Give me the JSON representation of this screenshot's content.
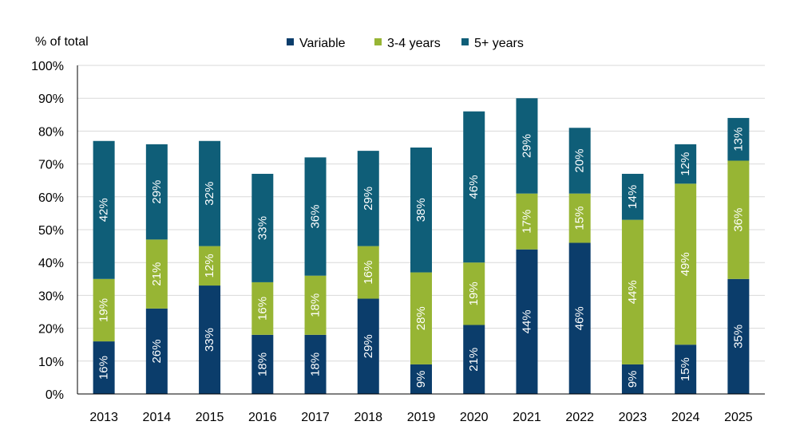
{
  "chart_data": {
    "type": "bar",
    "stacked": true,
    "ylabel": "% of total",
    "ylim": [
      0,
      100
    ],
    "yticks": [
      "0%",
      "10%",
      "20%",
      "30%",
      "40%",
      "50%",
      "60%",
      "70%",
      "80%",
      "90%",
      "100%"
    ],
    "grid": true,
    "legend_position": "top",
    "categories": [
      "2013",
      "2014",
      "2015",
      "2016",
      "2017",
      "2018",
      "2019",
      "2020",
      "2021",
      "2022",
      "2023",
      "2024",
      "2025"
    ],
    "series": [
      {
        "name": "Variable",
        "color": "#0b3d6b",
        "values": [
          16,
          26,
          33,
          18,
          18,
          29,
          9,
          21,
          44,
          46,
          9,
          15,
          35
        ],
        "labels": [
          "16%",
          "26%",
          "33%",
          "18%",
          "18%",
          "29%",
          "9%",
          "21%",
          "44%",
          "46%",
          "9%",
          "15%",
          "35%"
        ]
      },
      {
        "name": "3-4 years",
        "color": "#97b534",
        "values": [
          19,
          21,
          12,
          16,
          18,
          16,
          28,
          19,
          17,
          15,
          44,
          49,
          36
        ],
        "labels": [
          "19%",
          "21%",
          "12%",
          "16%",
          "18%",
          "16%",
          "28%",
          "19%",
          "17%",
          "15%",
          "44%",
          "49%",
          "36%"
        ]
      },
      {
        "name": "5+ years",
        "color": "#0f5e78",
        "values": [
          42,
          29,
          32,
          33,
          36,
          29,
          38,
          46,
          29,
          20,
          14,
          12,
          13
        ],
        "labels": [
          "42%",
          "29%",
          "32%",
          "33%",
          "36%",
          "29%",
          "38%",
          "46%",
          "29%",
          "20%",
          "14%",
          "12%",
          "13%"
        ]
      }
    ]
  }
}
